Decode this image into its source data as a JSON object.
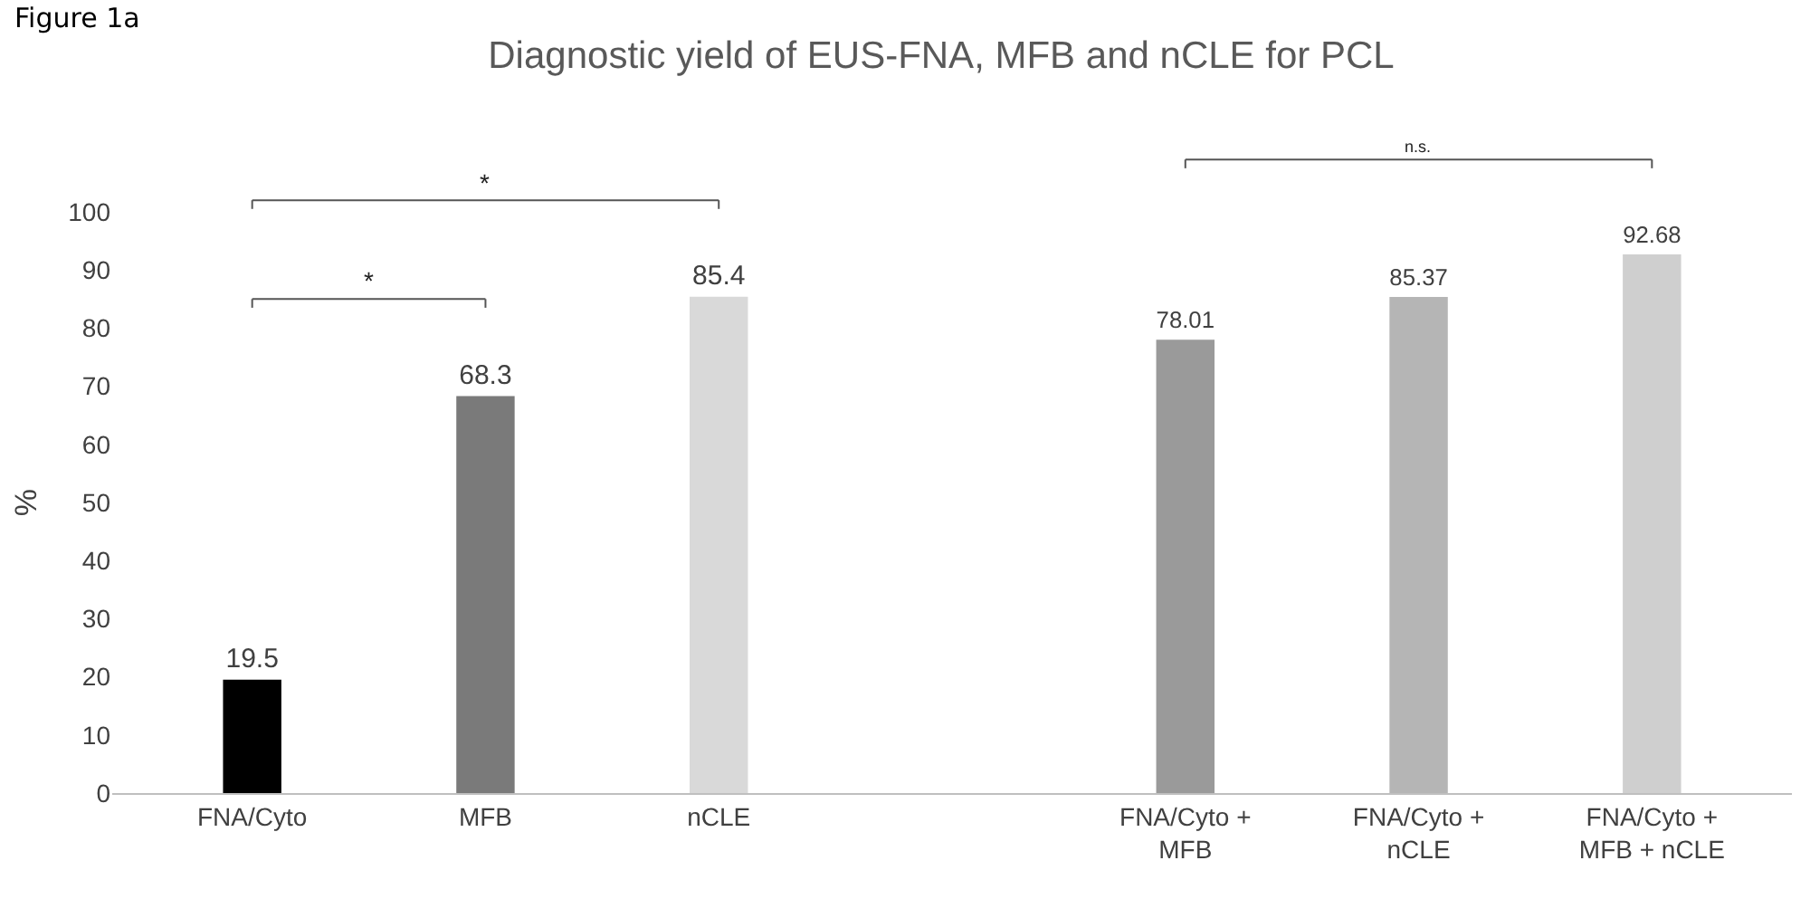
{
  "chart_data": {
    "type": "bar",
    "title": "Diagnostic yield of EUS-FNA, MFB and nCLE for PCL",
    "ylabel": "%",
    "categories": [
      "FNA/Cyto",
      "MFB",
      "nCLE",
      null,
      "FNA/Cyto + MFB",
      "FNA/Cyto + nCLE",
      "FNA/Cyto + MFB + nCLE"
    ],
    "values": [
      19.5,
      68.3,
      85.4,
      null,
      78.01,
      85.37,
      92.68
    ],
    "colors": [
      "#000000",
      "#7a7a7a",
      "#d9d9d9",
      "#ffffff",
      "#9a9a9a",
      "#b5b5b5",
      "#cfcfcf"
    ],
    "ylim": [
      0,
      100
    ],
    "yticks": [
      0,
      10,
      20,
      30,
      40,
      50,
      60,
      70,
      80,
      90,
      100
    ],
    "grid": false,
    "data_labels": true,
    "annotations": [
      "Figure 1a",
      "*",
      "*",
      "n.s."
    ]
  }
}
